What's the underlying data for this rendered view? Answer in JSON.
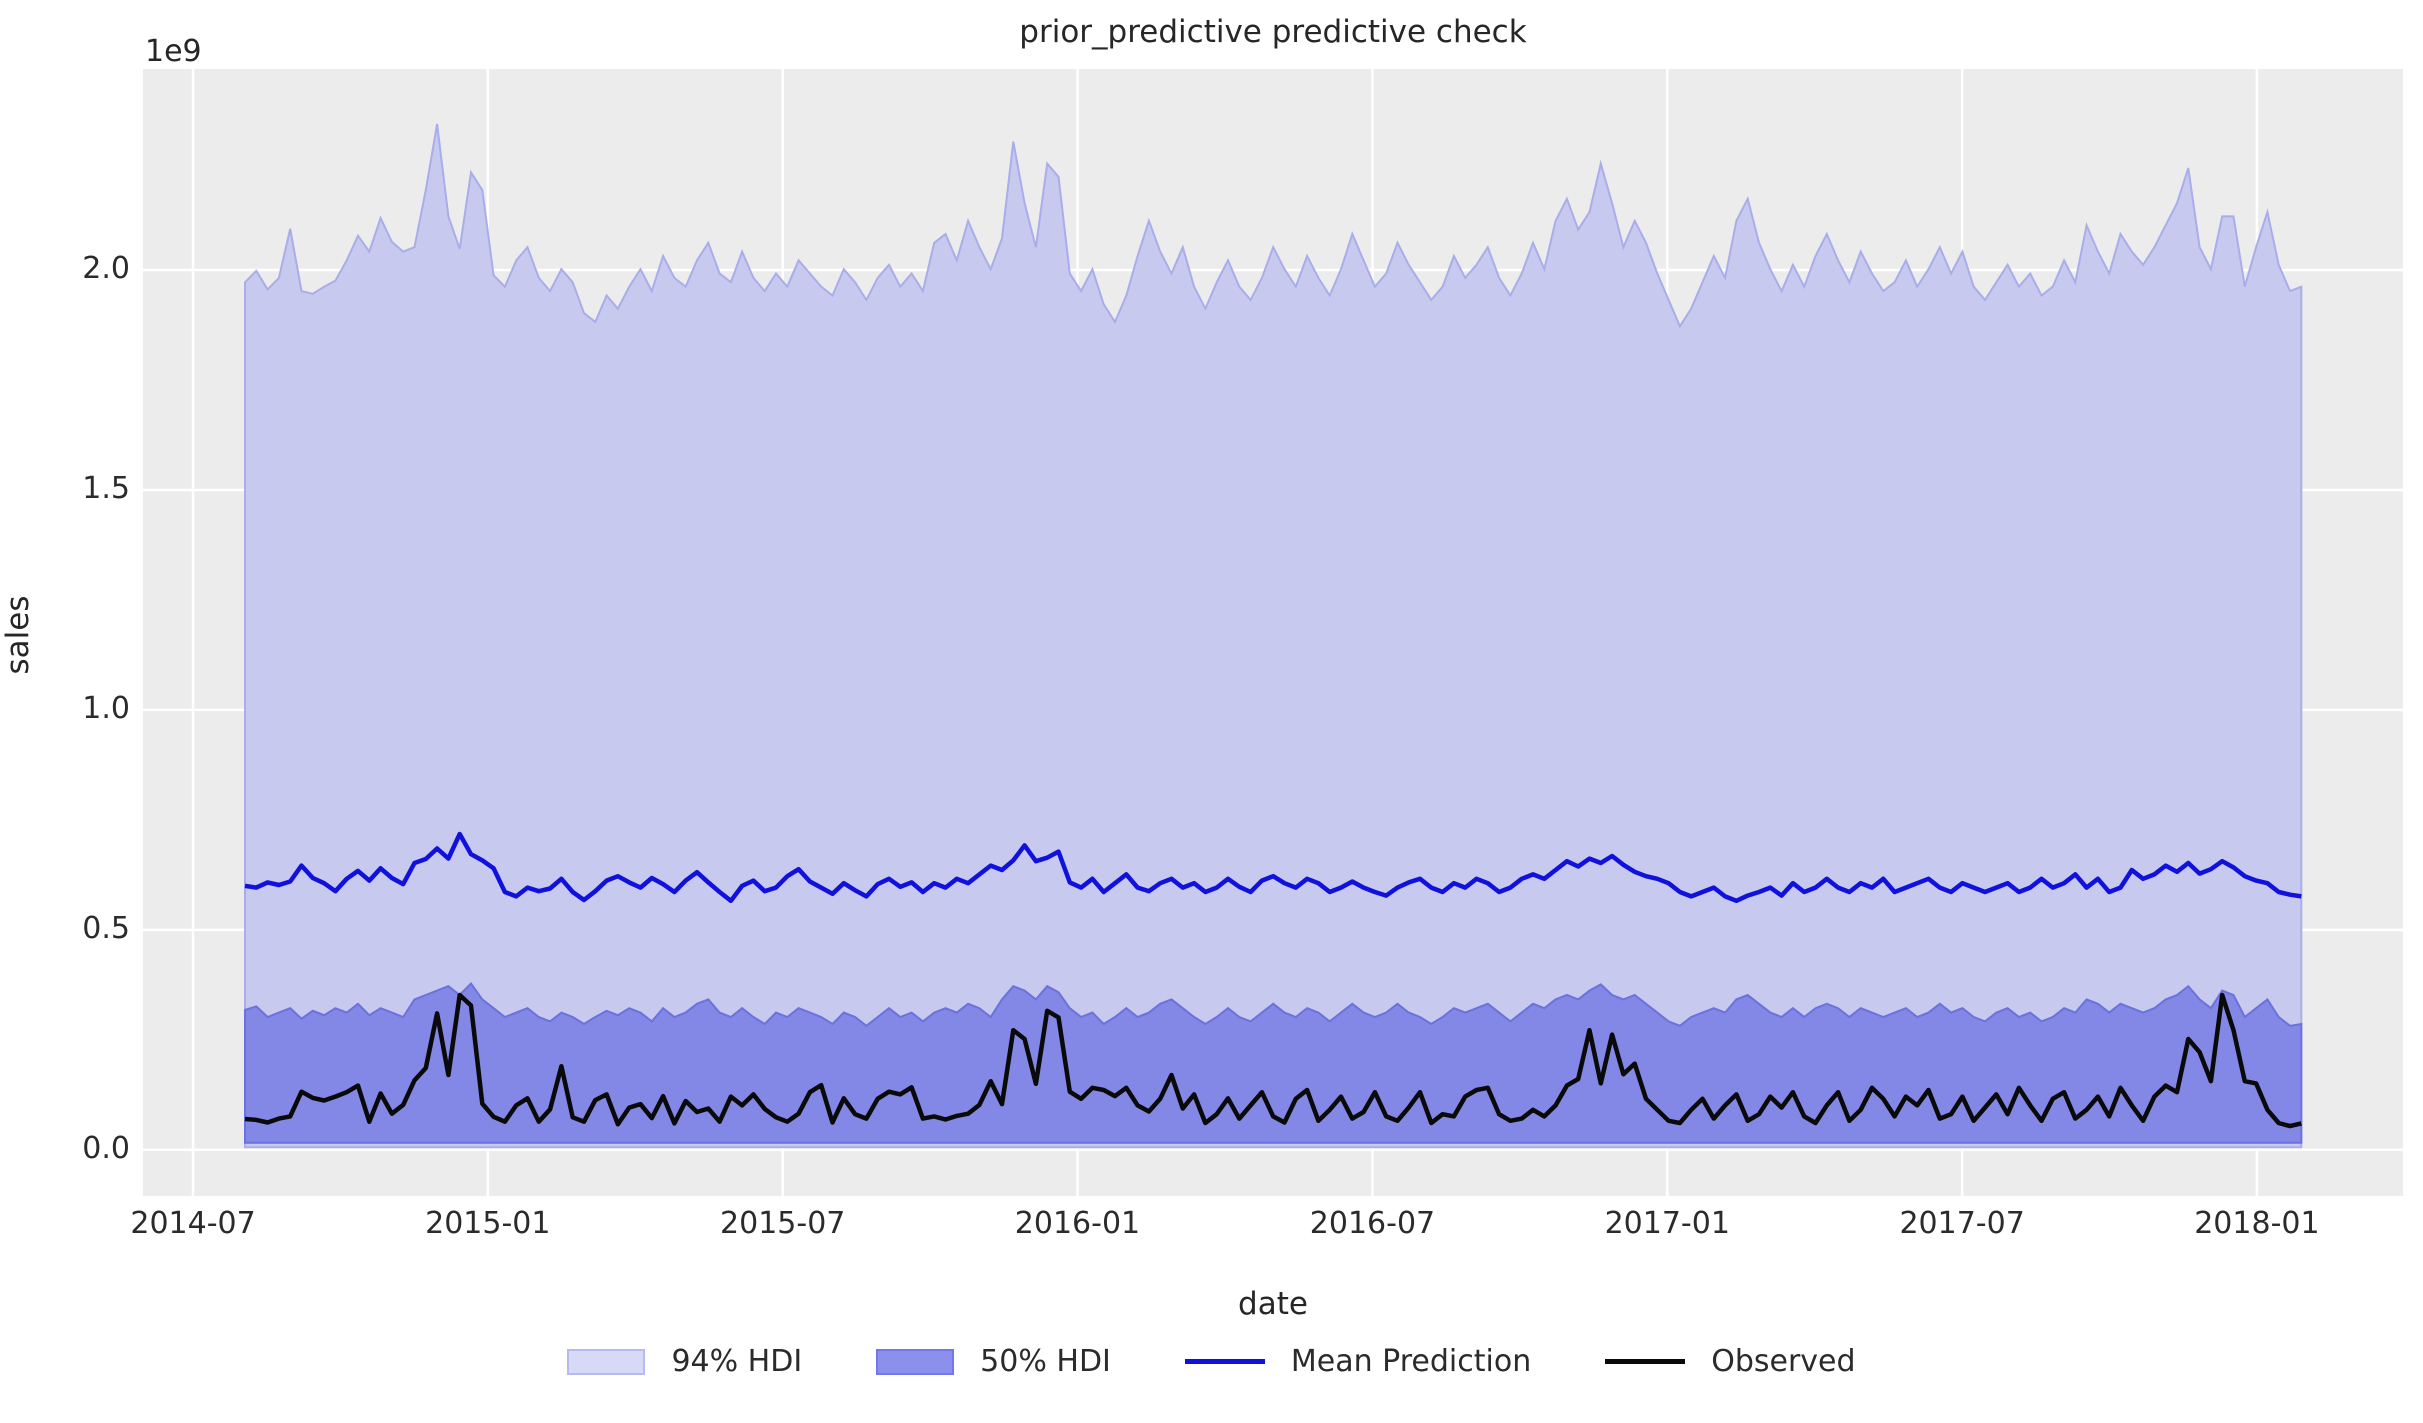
{
  "figure": {
    "background": "#ffffff",
    "axes_background": "#ececec",
    "grid_color": "#ffffff",
    "text_color": "#262626"
  },
  "chart_data": {
    "type": "area",
    "subtype": "hdi-bands-with-lines (posterior/prior predictive check, ArviZ style)",
    "title": "prior_predictive predictive check",
    "xlabel": "date",
    "ylabel": "sales",
    "y_offset_text": "1e9",
    "value_unit": "1e9",
    "x_start": "2014-08-03",
    "x_freq_days": 7,
    "n_points": 183,
    "grid": true,
    "legend_position": "bottom-center",
    "x_tick_labels": [
      "2014-07",
      "2015-01",
      "2015-07",
      "2016-01",
      "2016-07",
      "2017-01",
      "2017-07",
      "2018-01"
    ],
    "x_tick_positions_weeks": [
      -4.6,
      21.49,
      47.59,
      73.68,
      99.79,
      125.88,
      151.98,
      178.07
    ],
    "y_tick_labels": [
      "0.0",
      "0.5",
      "1.0",
      "1.5",
      "2.0"
    ],
    "y_tick_values": [
      0,
      0.5,
      1.0,
      1.5,
      2.0
    ],
    "xlim_weeks": [
      -9.03,
      191.0
    ],
    "ylim": [
      -0.105,
      2.457
    ],
    "series": [
      {
        "name": "94% HDI",
        "kind": "band",
        "fill": "#c7c9ee",
        "edge": "#a9ade9",
        "lower_constant": 0.006,
        "upper": [
          1.972,
          1.998,
          1.956,
          1.982,
          2.094,
          1.952,
          1.946,
          1.962,
          1.976,
          2.022,
          2.078,
          2.042,
          2.118,
          2.064,
          2.042,
          2.052,
          2.182,
          2.332,
          2.122,
          2.048,
          2.222,
          2.182,
          1.988,
          1.962,
          2.022,
          2.052,
          1.982,
          1.952,
          2.002,
          1.972,
          1.902,
          1.882,
          1.942,
          1.912,
          1.962,
          2.002,
          1.952,
          2.032,
          1.982,
          1.962,
          2.022,
          2.062,
          1.992,
          1.972,
          2.042,
          1.982,
          1.952,
          1.992,
          1.962,
          2.022,
          1.992,
          1.962,
          1.942,
          2.002,
          1.972,
          1.932,
          1.982,
          2.012,
          1.962,
          1.992,
          1.952,
          2.062,
          2.082,
          2.022,
          2.112,
          2.052,
          2.002,
          2.072,
          2.292,
          2.152,
          2.052,
          2.242,
          2.212,
          1.992,
          1.952,
          2.002,
          1.922,
          1.882,
          1.942,
          2.032,
          2.112,
          2.042,
          1.992,
          2.052,
          1.962,
          1.912,
          1.972,
          2.022,
          1.962,
          1.932,
          1.982,
          2.052,
          2.002,
          1.962,
          2.032,
          1.982,
          1.942,
          2.002,
          2.082,
          2.022,
          1.962,
          1.992,
          2.062,
          2.012,
          1.972,
          1.932,
          1.962,
          2.032,
          1.982,
          2.012,
          2.052,
          1.982,
          1.942,
          1.992,
          2.062,
          2.002,
          2.112,
          2.162,
          2.092,
          2.132,
          2.242,
          2.152,
          2.052,
          2.112,
          2.062,
          1.992,
          1.932,
          1.872,
          1.912,
          1.972,
          2.032,
          1.982,
          2.112,
          2.162,
          2.062,
          2.002,
          1.952,
          2.012,
          1.962,
          2.032,
          2.082,
          2.022,
          1.972,
          2.042,
          1.992,
          1.952,
          1.972,
          2.022,
          1.962,
          2.002,
          2.052,
          1.992,
          2.042,
          1.962,
          1.932,
          1.972,
          2.012,
          1.962,
          1.992,
          1.942,
          1.962,
          2.022,
          1.972,
          2.102,
          2.042,
          1.992,
          2.082,
          2.042,
          2.012,
          2.052,
          2.102,
          2.152,
          2.232,
          2.052,
          2.002,
          2.122,
          2.122,
          1.962,
          2.052,
          2.132,
          2.012,
          1.952,
          1.962
        ]
      },
      {
        "name": "50% HDI",
        "kind": "band",
        "fill": "#8388e6",
        "edge": "#6b71dd",
        "lower_constant": 0.016,
        "upper": [
          0.318,
          0.326,
          0.302,
          0.312,
          0.322,
          0.298,
          0.316,
          0.306,
          0.322,
          0.312,
          0.332,
          0.306,
          0.322,
          0.312,
          0.302,
          0.342,
          0.352,
          0.362,
          0.372,
          0.352,
          0.378,
          0.342,
          0.322,
          0.302,
          0.312,
          0.322,
          0.302,
          0.292,
          0.312,
          0.302,
          0.286,
          0.302,
          0.316,
          0.306,
          0.322,
          0.312,
          0.292,
          0.322,
          0.302,
          0.312,
          0.332,
          0.342,
          0.312,
          0.302,
          0.322,
          0.302,
          0.286,
          0.312,
          0.302,
          0.322,
          0.312,
          0.302,
          0.286,
          0.312,
          0.302,
          0.282,
          0.302,
          0.322,
          0.302,
          0.312,
          0.292,
          0.312,
          0.322,
          0.312,
          0.332,
          0.322,
          0.302,
          0.342,
          0.372,
          0.362,
          0.342,
          0.372,
          0.358,
          0.322,
          0.302,
          0.312,
          0.286,
          0.302,
          0.322,
          0.302,
          0.312,
          0.332,
          0.342,
          0.322,
          0.302,
          0.286,
          0.302,
          0.322,
          0.302,
          0.292,
          0.312,
          0.332,
          0.312,
          0.302,
          0.322,
          0.312,
          0.292,
          0.312,
          0.332,
          0.312,
          0.302,
          0.312,
          0.332,
          0.312,
          0.302,
          0.286,
          0.302,
          0.322,
          0.312,
          0.322,
          0.332,
          0.312,
          0.292,
          0.312,
          0.332,
          0.322,
          0.342,
          0.352,
          0.342,
          0.362,
          0.376,
          0.352,
          0.342,
          0.352,
          0.332,
          0.312,
          0.292,
          0.282,
          0.302,
          0.312,
          0.322,
          0.312,
          0.342,
          0.352,
          0.332,
          0.312,
          0.302,
          0.322,
          0.302,
          0.322,
          0.332,
          0.322,
          0.302,
          0.322,
          0.312,
          0.302,
          0.312,
          0.322,
          0.302,
          0.312,
          0.332,
          0.312,
          0.322,
          0.302,
          0.292,
          0.312,
          0.322,
          0.302,
          0.312,
          0.292,
          0.302,
          0.322,
          0.312,
          0.342,
          0.332,
          0.312,
          0.332,
          0.322,
          0.312,
          0.322,
          0.342,
          0.352,
          0.372,
          0.342,
          0.322,
          0.362,
          0.352,
          0.302,
          0.322,
          0.342,
          0.302,
          0.282,
          0.286
        ]
      },
      {
        "name": "Mean Prediction",
        "kind": "line",
        "color": "#1111dd",
        "values": [
          0.6,
          0.596,
          0.608,
          0.602,
          0.61,
          0.646,
          0.618,
          0.606,
          0.588,
          0.616,
          0.634,
          0.612,
          0.64,
          0.618,
          0.604,
          0.652,
          0.661,
          0.685,
          0.662,
          0.718,
          0.672,
          0.658,
          0.64,
          0.586,
          0.576,
          0.596,
          0.588,
          0.594,
          0.616,
          0.586,
          0.568,
          0.588,
          0.612,
          0.622,
          0.608,
          0.596,
          0.618,
          0.604,
          0.586,
          0.612,
          0.631,
          0.608,
          0.586,
          0.566,
          0.6,
          0.612,
          0.588,
          0.596,
          0.622,
          0.638,
          0.61,
          0.596,
          0.582,
          0.606,
          0.59,
          0.576,
          0.604,
          0.616,
          0.598,
          0.608,
          0.586,
          0.606,
          0.596,
          0.616,
          0.606,
          0.626,
          0.646,
          0.636,
          0.658,
          0.692,
          0.656,
          0.664,
          0.678,
          0.608,
          0.596,
          0.616,
          0.586,
          0.606,
          0.626,
          0.596,
          0.588,
          0.606,
          0.616,
          0.596,
          0.606,
          0.586,
          0.596,
          0.616,
          0.598,
          0.586,
          0.612,
          0.622,
          0.606,
          0.596,
          0.616,
          0.606,
          0.586,
          0.596,
          0.61,
          0.596,
          0.586,
          0.578,
          0.596,
          0.608,
          0.616,
          0.596,
          0.586,
          0.606,
          0.596,
          0.616,
          0.606,
          0.586,
          0.596,
          0.616,
          0.626,
          0.616,
          0.636,
          0.656,
          0.644,
          0.662,
          0.652,
          0.668,
          0.648,
          0.632,
          0.622,
          0.616,
          0.606,
          0.586,
          0.576,
          0.586,
          0.596,
          0.576,
          0.566,
          0.578,
          0.586,
          0.596,
          0.578,
          0.606,
          0.586,
          0.596,
          0.616,
          0.596,
          0.586,
          0.606,
          0.596,
          0.616,
          0.586,
          0.596,
          0.606,
          0.616,
          0.596,
          0.586,
          0.606,
          0.596,
          0.586,
          0.596,
          0.606,
          0.586,
          0.596,
          0.616,
          0.596,
          0.606,
          0.626,
          0.596,
          0.616,
          0.586,
          0.596,
          0.636,
          0.616,
          0.626,
          0.646,
          0.632,
          0.652,
          0.628,
          0.638,
          0.656,
          0.642,
          0.622,
          0.612,
          0.606,
          0.586,
          0.58,
          0.576
        ]
      },
      {
        "name": "Observed",
        "kind": "line",
        "color": "#0a0a0a",
        "values": [
          0.07,
          0.068,
          0.062,
          0.071,
          0.076,
          0.132,
          0.118,
          0.112,
          0.121,
          0.131,
          0.146,
          0.064,
          0.128,
          0.082,
          0.102,
          0.158,
          0.186,
          0.31,
          0.17,
          0.352,
          0.328,
          0.105,
          0.075,
          0.064,
          0.101,
          0.117,
          0.064,
          0.092,
          0.19,
          0.074,
          0.064,
          0.113,
          0.126,
          0.058,
          0.096,
          0.104,
          0.072,
          0.122,
          0.06,
          0.111,
          0.086,
          0.094,
          0.064,
          0.121,
          0.101,
          0.126,
          0.093,
          0.074,
          0.064,
          0.082,
          0.131,
          0.147,
          0.062,
          0.117,
          0.081,
          0.071,
          0.116,
          0.132,
          0.126,
          0.142,
          0.071,
          0.076,
          0.069,
          0.077,
          0.082,
          0.102,
          0.156,
          0.104,
          0.272,
          0.252,
          0.15,
          0.316,
          0.301,
          0.132,
          0.116,
          0.141,
          0.136,
          0.122,
          0.141,
          0.101,
          0.087,
          0.116,
          0.17,
          0.094,
          0.126,
          0.061,
          0.081,
          0.117,
          0.071,
          0.101,
          0.131,
          0.076,
          0.062,
          0.116,
          0.136,
          0.066,
          0.091,
          0.121,
          0.071,
          0.086,
          0.131,
          0.076,
          0.066,
          0.096,
          0.131,
          0.061,
          0.081,
          0.076,
          0.121,
          0.136,
          0.141,
          0.081,
          0.066,
          0.071,
          0.091,
          0.076,
          0.101,
          0.146,
          0.161,
          0.272,
          0.151,
          0.262,
          0.172,
          0.196,
          0.116,
          0.091,
          0.066,
          0.061,
          0.091,
          0.116,
          0.071,
          0.101,
          0.126,
          0.066,
          0.081,
          0.121,
          0.096,
          0.131,
          0.076,
          0.061,
          0.101,
          0.131,
          0.066,
          0.091,
          0.141,
          0.116,
          0.076,
          0.121,
          0.101,
          0.136,
          0.071,
          0.081,
          0.121,
          0.066,
          0.096,
          0.126,
          0.081,
          0.141,
          0.101,
          0.066,
          0.116,
          0.131,
          0.071,
          0.091,
          0.121,
          0.076,
          0.141,
          0.101,
          0.066,
          0.121,
          0.146,
          0.131,
          0.252,
          0.222,
          0.156,
          0.352,
          0.272,
          0.156,
          0.151,
          0.091,
          0.061,
          0.054,
          0.06
        ]
      }
    ]
  }
}
